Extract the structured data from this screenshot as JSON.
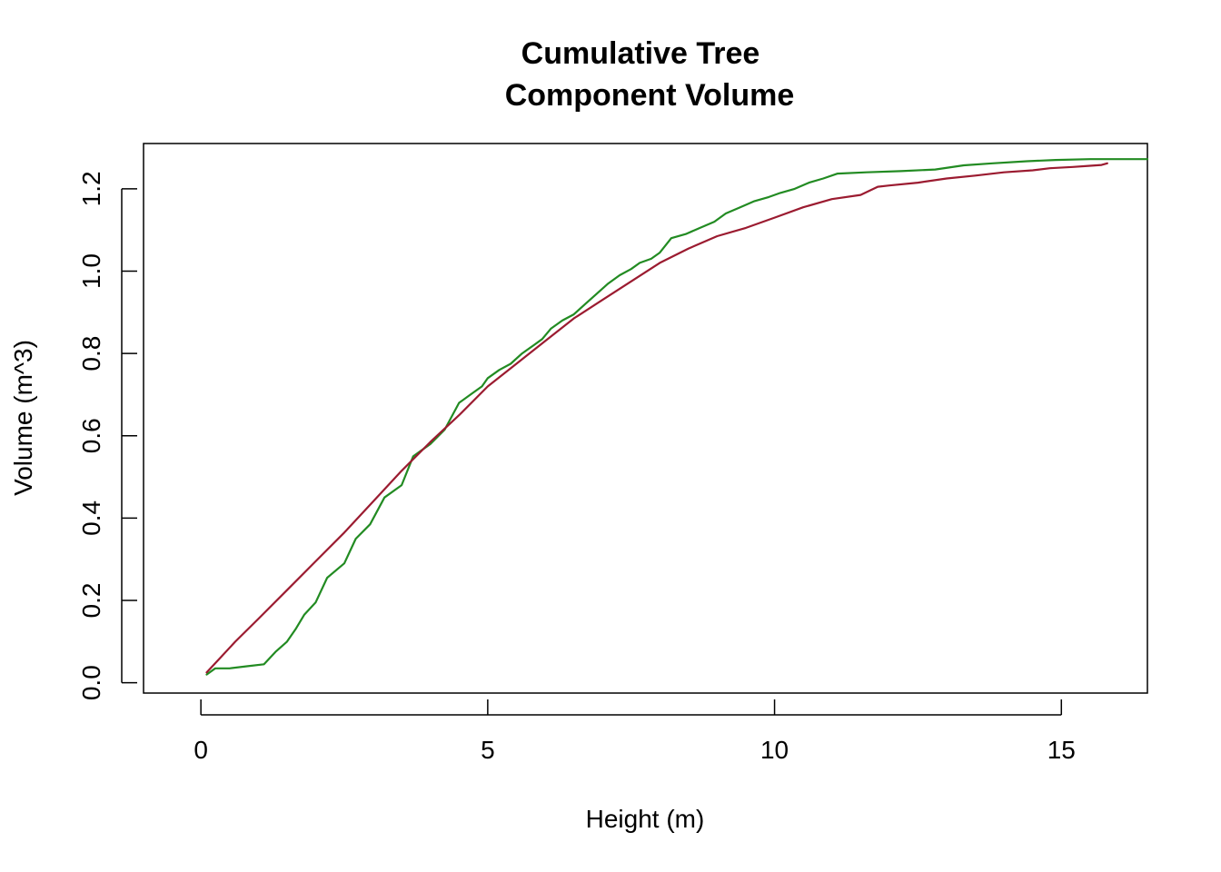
{
  "chart_data": {
    "type": "line",
    "title_line1": "Cumulative Tree",
    "title_line2": "Component Volume",
    "xlabel": "Height (m)",
    "ylabel": "Volume (m^3)",
    "xlim": [
      -1,
      16.5
    ],
    "ylim": [
      -0.025,
      1.31
    ],
    "x_ticks": [
      0,
      5,
      10,
      15
    ],
    "x_tick_labels": [
      "0",
      "5",
      "10",
      "15"
    ],
    "y_ticks": [
      0.0,
      0.2,
      0.4,
      0.6,
      0.8,
      1.0,
      1.2
    ],
    "y_tick_labels": [
      "0.0",
      "0.2",
      "0.4",
      "0.6",
      "0.8",
      "1.0",
      "1.2"
    ],
    "grid": false,
    "legend": "none",
    "series": [
      {
        "color": "#228B22",
        "points": [
          [
            0.1,
            0.02
          ],
          [
            0.25,
            0.035
          ],
          [
            0.5,
            0.035
          ],
          [
            0.8,
            0.04
          ],
          [
            1.1,
            0.045
          ],
          [
            1.3,
            0.075
          ],
          [
            1.5,
            0.1
          ],
          [
            1.65,
            0.13
          ],
          [
            1.8,
            0.165
          ],
          [
            2.0,
            0.195
          ],
          [
            2.2,
            0.255
          ],
          [
            2.5,
            0.29
          ],
          [
            2.7,
            0.35
          ],
          [
            2.95,
            0.385
          ],
          [
            3.2,
            0.45
          ],
          [
            3.5,
            0.48
          ],
          [
            3.7,
            0.55
          ],
          [
            4.0,
            0.58
          ],
          [
            4.25,
            0.615
          ],
          [
            4.5,
            0.68
          ],
          [
            4.7,
            0.7
          ],
          [
            4.9,
            0.72
          ],
          [
            5.0,
            0.74
          ],
          [
            5.2,
            0.76
          ],
          [
            5.4,
            0.775
          ],
          [
            5.6,
            0.8
          ],
          [
            5.8,
            0.82
          ],
          [
            5.95,
            0.835
          ],
          [
            6.1,
            0.86
          ],
          [
            6.3,
            0.88
          ],
          [
            6.5,
            0.895
          ],
          [
            6.7,
            0.92
          ],
          [
            6.9,
            0.945
          ],
          [
            7.1,
            0.97
          ],
          [
            7.3,
            0.99
          ],
          [
            7.5,
            1.005
          ],
          [
            7.65,
            1.02
          ],
          [
            7.85,
            1.03
          ],
          [
            8.0,
            1.045
          ],
          [
            8.2,
            1.08
          ],
          [
            8.45,
            1.09
          ],
          [
            8.7,
            1.105
          ],
          [
            8.95,
            1.12
          ],
          [
            9.15,
            1.14
          ],
          [
            9.4,
            1.155
          ],
          [
            9.65,
            1.17
          ],
          [
            9.9,
            1.18
          ],
          [
            10.1,
            1.19
          ],
          [
            10.35,
            1.2
          ],
          [
            10.6,
            1.215
          ],
          [
            10.85,
            1.225
          ],
          [
            11.1,
            1.237
          ],
          [
            11.6,
            1.24
          ],
          [
            12.2,
            1.243
          ],
          [
            12.8,
            1.247
          ],
          [
            13.3,
            1.257
          ],
          [
            13.8,
            1.262
          ],
          [
            14.4,
            1.267
          ],
          [
            14.9,
            1.27
          ],
          [
            15.5,
            1.272
          ],
          [
            16.5,
            1.272
          ]
        ]
      },
      {
        "color": "#9B1B30",
        "points": [
          [
            0.1,
            0.025
          ],
          [
            0.3,
            0.055
          ],
          [
            0.6,
            0.1
          ],
          [
            1.0,
            0.155
          ],
          [
            1.5,
            0.225
          ],
          [
            2.0,
            0.295
          ],
          [
            2.5,
            0.365
          ],
          [
            3.0,
            0.44
          ],
          [
            3.5,
            0.515
          ],
          [
            4.0,
            0.585
          ],
          [
            4.5,
            0.65
          ],
          [
            5.0,
            0.72
          ],
          [
            5.5,
            0.775
          ],
          [
            6.0,
            0.83
          ],
          [
            6.5,
            0.885
          ],
          [
            7.0,
            0.93
          ],
          [
            7.5,
            0.975
          ],
          [
            8.0,
            1.02
          ],
          [
            8.5,
            1.055
          ],
          [
            9.0,
            1.085
          ],
          [
            9.5,
            1.105
          ],
          [
            10.0,
            1.13
          ],
          [
            10.5,
            1.155
          ],
          [
            11.0,
            1.175
          ],
          [
            11.5,
            1.185
          ],
          [
            11.8,
            1.205
          ],
          [
            12.0,
            1.208
          ],
          [
            12.5,
            1.215
          ],
          [
            13.0,
            1.225
          ],
          [
            13.5,
            1.232
          ],
          [
            14.0,
            1.24
          ],
          [
            14.5,
            1.245
          ],
          [
            14.8,
            1.25
          ],
          [
            15.2,
            1.253
          ],
          [
            15.5,
            1.256
          ],
          [
            15.7,
            1.258
          ],
          [
            15.8,
            1.262
          ]
        ]
      }
    ]
  }
}
